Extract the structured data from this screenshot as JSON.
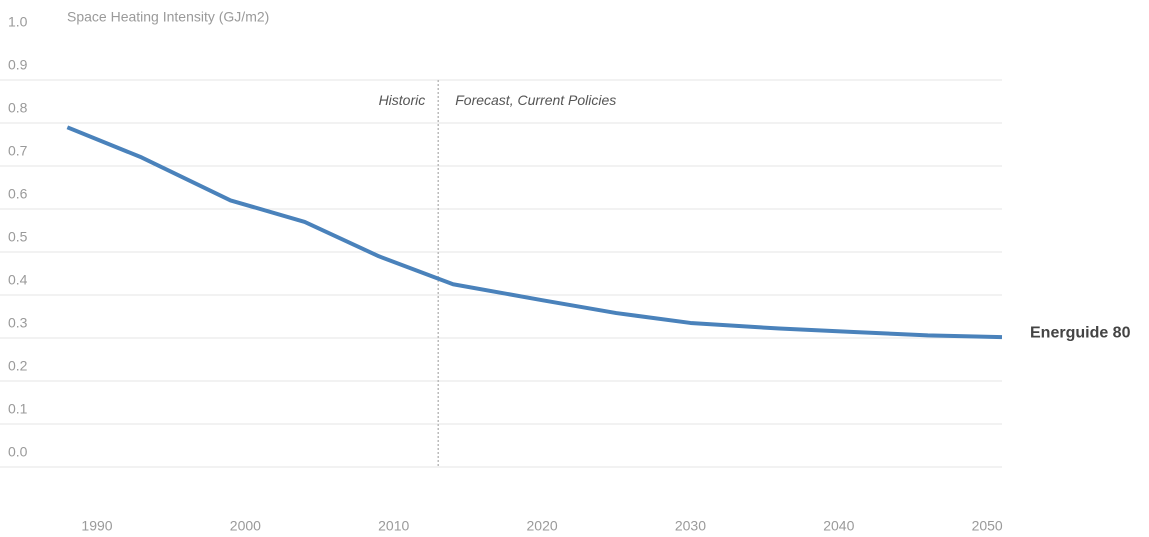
{
  "chart_data": {
    "type": "line",
    "title": "Space Heating Intensity (GJ/m2)",
    "x": [
      1988,
      1993,
      1999,
      2004,
      2009,
      2014,
      2020,
      2025,
      2030,
      2036,
      2041,
      2046,
      2051
    ],
    "series": [
      {
        "name": "Energuide 80",
        "color": "#4a82bb",
        "values": [
          0.79,
          0.72,
          0.62,
          0.57,
          0.49,
          0.425,
          0.388,
          0.358,
          0.335,
          0.322,
          0.314,
          0.306,
          0.302
        ]
      }
    ],
    "xlim": [
      1984,
      2051
    ],
    "xticks": [
      1990,
      2000,
      2010,
      2020,
      2030,
      2040,
      2050
    ],
    "ylim": [
      0,
      1
    ],
    "yticks": [
      {
        "value": 0,
        "label": "0.0"
      },
      0.1,
      0.2,
      0.3,
      0.4,
      0.5,
      0.6,
      0.7,
      0.8,
      0.9,
      {
        "value": 1,
        "label": "1.0"
      }
    ],
    "grid": true,
    "divider_x": 2013,
    "annotations": [
      "Historic",
      "Forecast, Current Policies"
    ]
  }
}
